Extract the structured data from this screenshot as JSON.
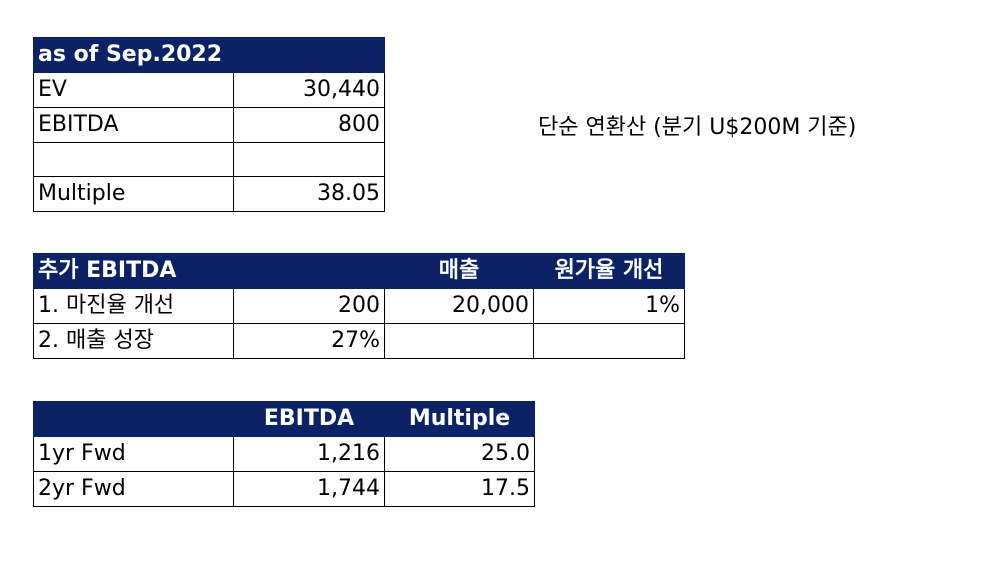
{
  "valuation": {
    "header": "as of Sep.2022",
    "rows": [
      {
        "label": "EV",
        "value": "30,440"
      },
      {
        "label": "EBITDA",
        "value": "800"
      },
      {
        "label": "",
        "value": ""
      },
      {
        "label": "Multiple",
        "value": "38.05"
      }
    ]
  },
  "note": "단순 연환산 (분기 U$200M 기준)",
  "additional": {
    "header": {
      "title": "추가 EBITDA",
      "col2": "",
      "col3": "매출",
      "col4": "원가율 개선"
    },
    "rows": [
      {
        "label": "1. 마진율 개선",
        "value": "200",
        "sales": "20,000",
        "improvement": "1%"
      },
      {
        "label": "2. 매출 성장",
        "value": "27%",
        "sales": "",
        "improvement": ""
      }
    ]
  },
  "forward": {
    "header": {
      "col1": "",
      "ebitda": "EBITDA",
      "multiple": "Multiple"
    },
    "rows": [
      {
        "label": "1yr Fwd",
        "ebitda": "1,216",
        "multiple": "25.0"
      },
      {
        "label": "2yr Fwd",
        "ebitda": "1,744",
        "multiple": "17.5"
      }
    ]
  }
}
